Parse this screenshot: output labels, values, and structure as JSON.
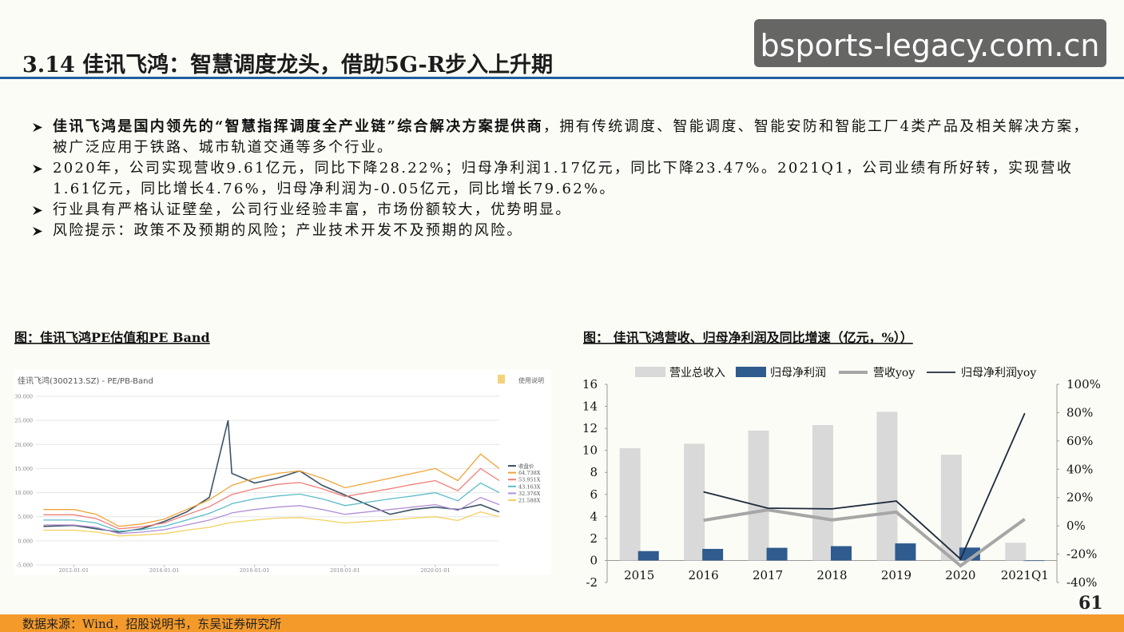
{
  "header": {
    "title": "3.14 佳讯飞鸿：智慧调度龙头，借助5G-R步入上升期",
    "watermark": "bsports-legacy.com.cn"
  },
  "bullets": [
    {
      "lead": "佳讯飞鸿是国内领先的“智慧指挥调度全产业链”综合解决方案提供商",
      "text": "，拥有传统调度、智能调度、智能安防和智能工厂4类产品及相关解决方案，被广泛应用于铁路、城市轨道交通等多个行业。"
    },
    {
      "text": "2020年，公司实现营收9.61亿元，同比下降28.22%；归母净利润1.17亿元，同比下降23.47%。2021Q1，公司业绩有所好转，实现营收1.61亿元，同比增长4.76%，归母净利润为-0.05亿元，同比增长79.62%。"
    },
    {
      "text": "行业具有严格认证壁垒，公司行业经验丰富，市场份额较大，优势明显。"
    },
    {
      "text": "风险提示：政策不及预期的风险；产业技术开发不及预期的风险。"
    }
  ],
  "chart_data": [
    {
      "type": "line",
      "title": "图：佳讯飞鸿PE估值和PE Band",
      "subtitle": "佳讯飞鸿(300213.SZ) - PE/PB-Band",
      "note": "使用说明",
      "x": [
        "2011-05-01",
        "2012-01-01",
        "2012-07-01",
        "2013-01-01",
        "2013-07-01",
        "2014-01-01",
        "2014-07-01",
        "2015-01-01",
        "2015-06-01",
        "2015-07-01",
        "2016-01-01",
        "2016-07-01",
        "2017-01-01",
        "2017-07-01",
        "2018-01-01",
        "2018-07-01",
        "2019-01-01",
        "2019-07-01",
        "2020-01-01",
        "2020-07-01",
        "2021-01-01",
        "2021-06-01"
      ],
      "xlim": [
        "2011-03-01",
        "2021-06-01"
      ],
      "xticks": [
        "2012-01-01",
        "2014-01-01",
        "2016-01-01",
        "2018-01-01",
        "2020-01-01"
      ],
      "ylim": [
        -5,
        30
      ],
      "yticks": [
        {
          "value": -5,
          "label": "-5.000"
        },
        {
          "value": 0,
          "label": "0.000"
        },
        {
          "value": 5,
          "label": "5.000"
        },
        {
          "value": 10,
          "label": "10.000"
        },
        {
          "value": 15,
          "label": "15.000"
        },
        {
          "value": 20,
          "label": "20.000"
        },
        {
          "value": 25,
          "label": "25.000"
        },
        {
          "value": 30,
          "label": "30.000"
        }
      ],
      "grid": true,
      "series": [
        {
          "name": "收盘价",
          "color": "#3d5366",
          "values": [
            3.0,
            3.2,
            2.5,
            1.8,
            2.5,
            4.0,
            6.0,
            9.0,
            25.0,
            14.0,
            12.0,
            13.0,
            14.5,
            11.5,
            9.5,
            7.5,
            5.5,
            6.5,
            7.0,
            6.5,
            7.5,
            6.0
          ]
        },
        {
          "name": "64.738X",
          "color": "#f0a53a",
          "values": [
            6.5,
            6.5,
            5.5,
            3.0,
            3.5,
            4.5,
            6.5,
            8.5,
            11.0,
            11.5,
            13.0,
            14.0,
            14.5,
            13.0,
            11.0,
            12.0,
            13.0,
            14.0,
            15.0,
            12.5,
            18.0,
            15.0
          ]
        },
        {
          "name": "53.951X",
          "color": "#f07f7a",
          "values": [
            5.4,
            5.4,
            4.6,
            2.5,
            2.9,
            3.7,
            5.4,
            7.1,
            9.2,
            9.6,
            10.8,
            11.7,
            12.1,
            10.8,
            9.2,
            10.0,
            10.8,
            11.7,
            12.5,
            10.4,
            15.0,
            12.5
          ]
        },
        {
          "name": "43.163X",
          "color": "#5bbcc8",
          "values": [
            4.3,
            4.3,
            3.7,
            2.0,
            2.3,
            3.0,
            4.3,
            5.7,
            7.3,
            7.7,
            8.7,
            9.3,
            9.7,
            8.7,
            7.3,
            8.0,
            8.7,
            9.3,
            10.0,
            8.3,
            12.0,
            10.0
          ]
        },
        {
          "name": "32.376X",
          "color": "#b18fd6",
          "values": [
            3.3,
            3.3,
            2.8,
            1.5,
            1.8,
            2.3,
            3.3,
            4.3,
            5.5,
            5.8,
            6.5,
            7.0,
            7.3,
            6.5,
            5.5,
            6.0,
            6.5,
            7.0,
            7.5,
            6.3,
            9.0,
            7.5
          ]
        },
        {
          "name": "21.588X",
          "color": "#f2d15e",
          "values": [
            2.2,
            2.2,
            1.8,
            1.0,
            1.2,
            1.5,
            2.2,
            2.8,
            3.7,
            3.8,
            4.3,
            4.7,
            4.8,
            4.3,
            3.7,
            4.0,
            4.3,
            4.7,
            5.0,
            4.2,
            6.0,
            5.0
          ]
        }
      ]
    },
    {
      "type": "combo",
      "title": "图： 佳讯飞鸿营收、归母净利润及同比增速（亿元，%））",
      "categories": [
        "2015",
        "2016",
        "2017",
        "2018",
        "2019",
        "2020",
        "2021Q1"
      ],
      "ylim": [
        -2,
        16
      ],
      "yticks": [
        -2,
        0,
        2,
        4,
        6,
        8,
        10,
        12,
        14,
        16
      ],
      "y2lim": [
        -40,
        100
      ],
      "y2ticks": [
        {
          "value": -40,
          "label": "-40%"
        },
        {
          "value": -20,
          "label": "-20%"
        },
        {
          "value": 0,
          "label": "0%"
        },
        {
          "value": 20,
          "label": "20%"
        },
        {
          "value": 40,
          "label": "40%"
        },
        {
          "value": 60,
          "label": "60%"
        },
        {
          "value": 80,
          "label": "80%"
        },
        {
          "value": 100,
          "label": "100%"
        }
      ],
      "series": [
        {
          "name": "营业总收入",
          "kind": "bar",
          "color": "#d9d9d9",
          "values": [
            10.2,
            10.6,
            11.8,
            12.3,
            13.5,
            9.61,
            1.61
          ]
        },
        {
          "name": "归母净利润",
          "kind": "bar",
          "color": "#2f5b8e",
          "values": [
            0.85,
            1.05,
            1.15,
            1.3,
            1.55,
            1.17,
            -0.05
          ]
        },
        {
          "name": "营收yoy",
          "kind": "line",
          "axis": "y2",
          "color": "#a6a6a6",
          "values": [
            null,
            3.9,
            11.3,
            4.2,
            9.8,
            -28.22,
            4.76
          ]
        },
        {
          "name": "归母净利润yoy",
          "kind": "line",
          "axis": "y2",
          "color": "#1c2b3c",
          "values": [
            null,
            24.0,
            12.5,
            12.0,
            17.5,
            -23.47,
            79.62
          ]
        }
      ]
    }
  ],
  "footer": {
    "source": "数据来源：Wind，招股说明书，东吴证券研究所",
    "page": "61"
  }
}
